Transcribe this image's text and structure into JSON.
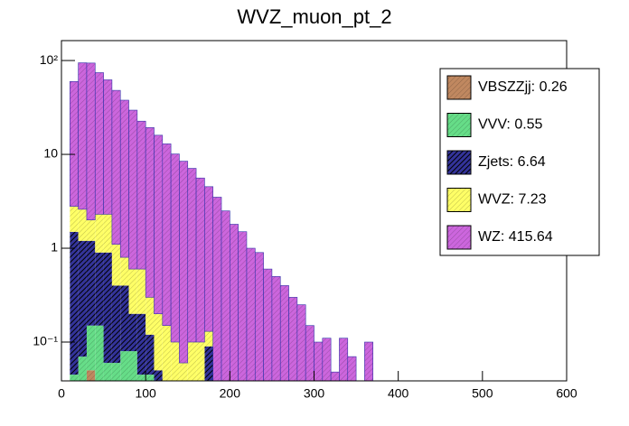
{
  "chart_data": {
    "type": "histogram",
    "stacked": true,
    "title": "WVZ_muon_pt_2",
    "log_scale_y": true,
    "xlim": [
      0,
      600
    ],
    "xticks": [
      0,
      100,
      200,
      300,
      400,
      500,
      600
    ],
    "ylim": [
      0.0386,
      163
    ],
    "yticks": [
      {
        "value": 0.1,
        "label": "10⁻¹"
      },
      1,
      10,
      {
        "value": 100,
        "label": "10²"
      }
    ],
    "legend": "upper right",
    "bins": [
      10,
      20,
      30,
      40,
      50,
      60,
      70,
      80,
      90,
      100,
      110,
      120,
      130,
      140,
      150,
      160,
      170,
      180,
      190,
      200,
      210,
      220,
      230,
      240,
      250,
      260,
      270,
      280,
      290,
      300,
      310,
      320,
      330,
      340,
      350,
      360,
      370
    ],
    "series": [
      {
        "name": "VBSZZjj: 0.26",
        "color": "#c08860",
        "values": [
          0,
          0,
          0.05,
          0,
          0,
          0,
          0,
          0,
          0,
          0,
          0,
          0,
          0,
          0,
          0,
          0,
          0,
          0,
          0,
          0,
          0,
          0,
          0,
          0,
          0,
          0,
          0,
          0,
          0,
          0,
          0,
          0,
          0,
          0,
          0,
          0
        ]
      },
      {
        "name": "VVV: 0.55",
        "color": "#66dd88",
        "values": [
          0.045,
          0.07,
          0.1,
          0.15,
          0.06,
          0.06,
          0.08,
          0.08,
          0.045,
          0.045,
          0,
          0,
          0,
          0,
          0,
          0,
          0,
          0,
          0,
          0,
          0,
          0,
          0,
          0,
          0,
          0,
          0,
          0,
          0,
          0,
          0,
          0,
          0,
          0,
          0,
          0
        ]
      },
      {
        "name": "Zjets: 6.64",
        "color": "#333399",
        "values": [
          1.45,
          1.13,
          1.05,
          0.75,
          0.84,
          0.34,
          0.32,
          0.12,
          0.155,
          0.075,
          0.05,
          0,
          0,
          0,
          0,
          0,
          0.09,
          0,
          0,
          0,
          0,
          0,
          0,
          0,
          0,
          0,
          0,
          0,
          0,
          0,
          0,
          0,
          0,
          0,
          0,
          0
        ]
      },
      {
        "name": "WVZ: 7.23",
        "color": "#ffff66",
        "values": [
          1.3,
          1.4,
          0.8,
          1.4,
          1.4,
          0.7,
          0.4,
          0.4,
          0.4,
          0.18,
          0.15,
          0.15,
          0.1,
          0.06,
          0.1,
          0.1,
          0.04,
          0,
          0,
          0,
          0,
          0,
          0,
          0,
          0,
          0,
          0,
          0,
          0,
          0,
          0,
          0,
          0,
          0,
          0,
          0
        ]
      },
      {
        "name": "WZ: 415.64",
        "color": "#cc66dd",
        "values": [
          57,
          92,
          92,
          72,
          60,
          47,
          37,
          29,
          22,
          19,
          15.8,
          12.8,
          10,
          8.4,
          7,
          5.5,
          4.4,
          3.5,
          2.5,
          1.8,
          1.5,
          1.0,
          0.9,
          0.6,
          0.5,
          0.4,
          0.3,
          0.25,
          0.15,
          0.1,
          0.11,
          0.048,
          0.11,
          0.07,
          0,
          0.1
        ]
      }
    ]
  }
}
